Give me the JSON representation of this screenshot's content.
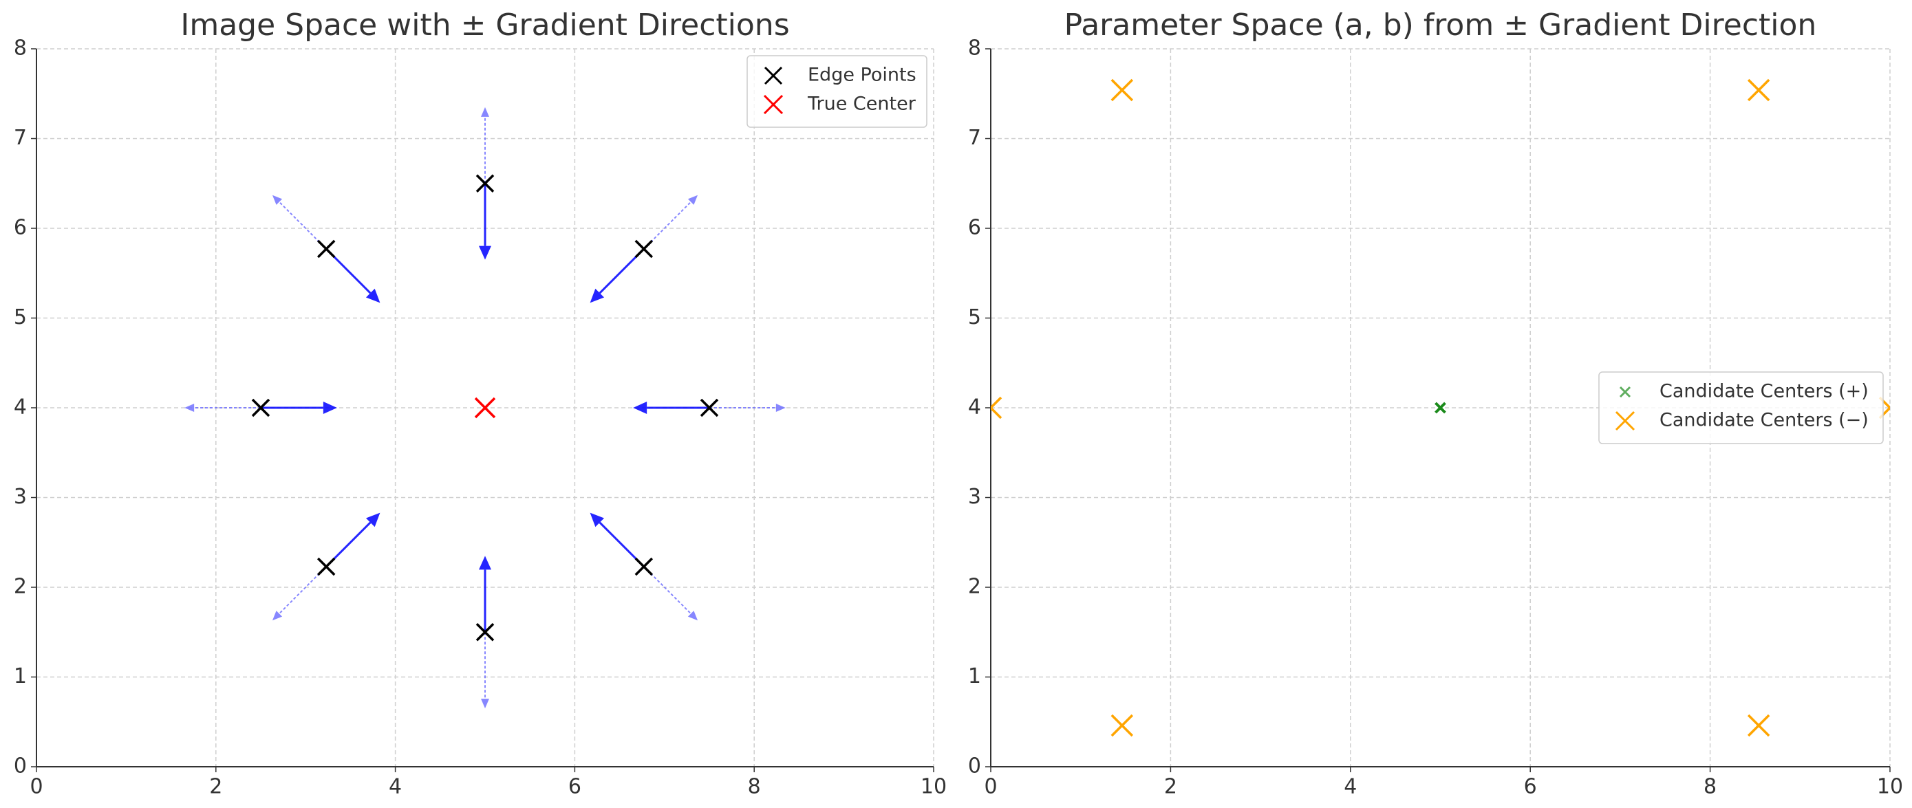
{
  "chart_data": [
    {
      "type": "scatter",
      "title": "Image Space with ± Gradient Directions",
      "xlim": [
        0,
        10
      ],
      "ylim": [
        0,
        8
      ],
      "xticks": [
        0,
        2,
        4,
        6,
        8,
        10
      ],
      "yticks": [
        0,
        1,
        2,
        3,
        4,
        5,
        6,
        7,
        8
      ],
      "grid": true,
      "legend": "upper right",
      "quiver": [
        {
          "color": "#0000ff",
          "linestyle": "solid",
          "x": [
            7.5,
            6.77,
            5,
            3.23,
            2.5,
            3.23,
            5,
            6.77
          ],
          "y": [
            4,
            5.77,
            6.5,
            5.77,
            4,
            2.23,
            1.5,
            2.23
          ],
          "u": [
            -0.85,
            -0.6,
            0,
            0.6,
            0.85,
            0.6,
            0,
            -0.6
          ],
          "v": [
            0,
            -0.6,
            -0.85,
            -0.6,
            0,
            0.6,
            0.85,
            0.6
          ]
        },
        {
          "color": "#6a6aff",
          "linestyle": "dashed",
          "x": [
            7.5,
            6.77,
            5,
            3.23,
            2.5,
            3.23,
            5,
            6.77
          ],
          "y": [
            4,
            5.77,
            6.5,
            5.77,
            4,
            2.23,
            1.5,
            2.23
          ],
          "u": [
            0.85,
            0.6,
            0,
            -0.6,
            -0.85,
            -0.6,
            0,
            0.6
          ],
          "v": [
            0,
            0.6,
            0.85,
            0.6,
            0,
            -0.6,
            -0.85,
            -0.6
          ]
        }
      ],
      "series": [
        {
          "name": "Edge Points",
          "color": "#000000",
          "x": [
            7.5,
            6.77,
            5,
            3.23,
            2.5,
            3.23,
            5,
            6.77
          ],
          "y": [
            4,
            5.77,
            6.5,
            5.77,
            4,
            2.23,
            1.5,
            2.23
          ]
        },
        {
          "name": "True Center",
          "color": "#ff0000",
          "x": [
            5
          ],
          "y": [
            4
          ]
        }
      ]
    },
    {
      "type": "scatter",
      "title": "Parameter Space (a, b) from ± Gradient Direction",
      "xlim": [
        0,
        10
      ],
      "ylim": [
        0,
        8
      ],
      "xticks": [
        0,
        2,
        4,
        6,
        8,
        10
      ],
      "yticks": [
        0,
        1,
        2,
        3,
        4,
        5,
        6,
        7,
        8
      ],
      "grid": true,
      "legend": "center right",
      "series": [
        {
          "name": "Candidate Centers (+)",
          "color": "#1a8a1a",
          "x": [
            5
          ],
          "y": [
            4
          ]
        },
        {
          "name": "Candidate Centers (−)",
          "color": "#ffa500",
          "x": [
            10,
            8.54,
            1.46,
            0,
            1.46,
            8.54
          ],
          "y": [
            4,
            7.54,
            7.54,
            4,
            0.46,
            0.46
          ]
        }
      ]
    }
  ]
}
